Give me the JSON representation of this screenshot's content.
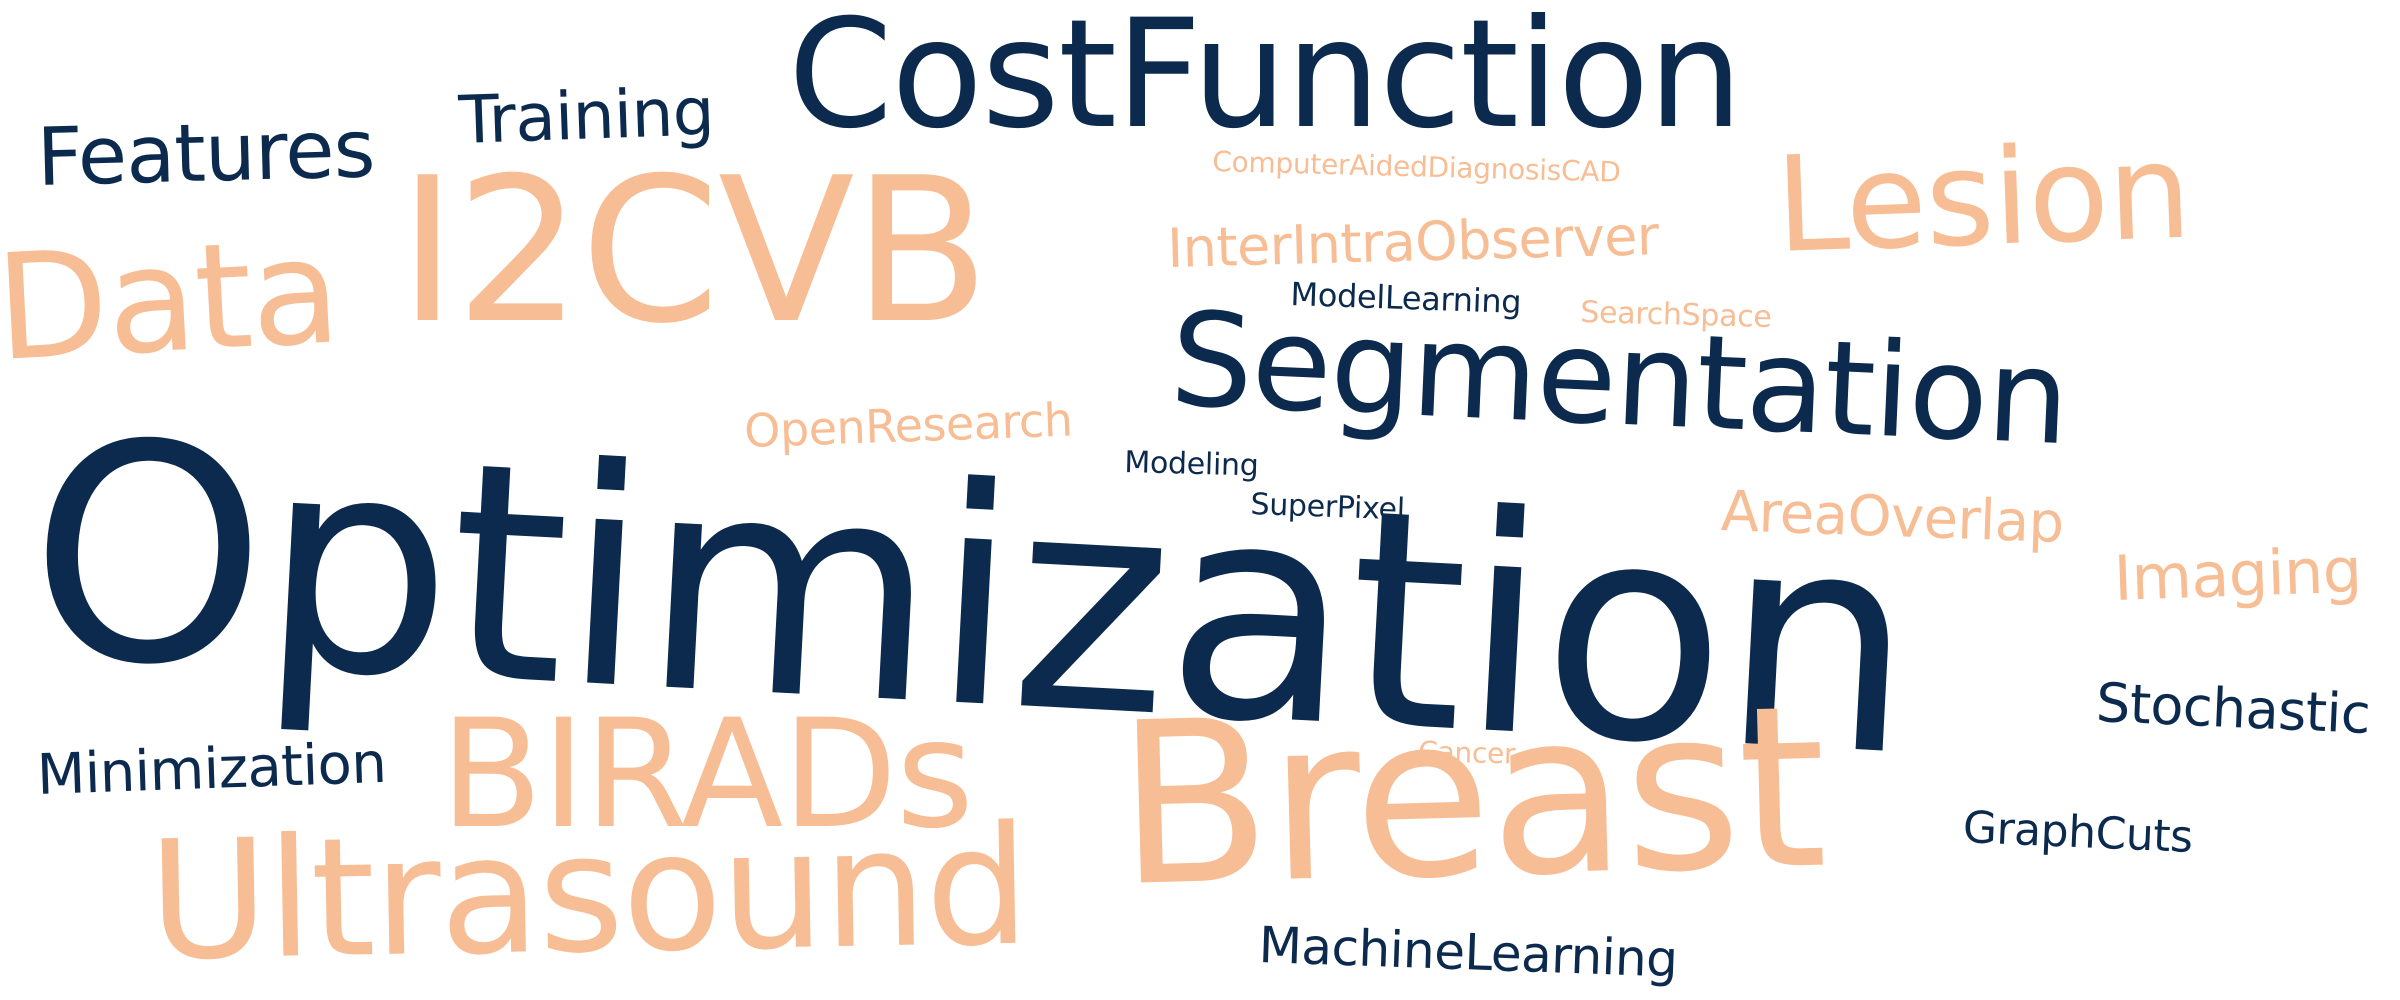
{
  "word_cloud": {
    "colors": {
      "dark": "#0c2a4d",
      "light": "#f7bd94",
      "background": "#ffffff"
    },
    "words": [
      {
        "id": "costfunction",
        "text": "CostFunction",
        "color": "dark"
      },
      {
        "id": "training",
        "text": "Training",
        "color": "dark"
      },
      {
        "id": "features",
        "text": "Features",
        "color": "dark"
      },
      {
        "id": "cad",
        "text": "ComputerAidedDiagnosisCAD",
        "color": "light"
      },
      {
        "id": "lesion",
        "text": "Lesion",
        "color": "light"
      },
      {
        "id": "i2cvb",
        "text": "I2CVB",
        "color": "light"
      },
      {
        "id": "data",
        "text": "Data",
        "color": "light"
      },
      {
        "id": "interintra",
        "text": "InterIntraObserver",
        "color": "light"
      },
      {
        "id": "modellearning",
        "text": "ModelLearning",
        "color": "dark"
      },
      {
        "id": "searchspace",
        "text": "SearchSpace",
        "color": "light"
      },
      {
        "id": "segmentation",
        "text": "Segmentation",
        "color": "dark"
      },
      {
        "id": "openresearch",
        "text": "OpenResearch",
        "color": "light"
      },
      {
        "id": "modeling",
        "text": "Modeling",
        "color": "dark"
      },
      {
        "id": "superpixel",
        "text": "SuperPixel",
        "color": "dark"
      },
      {
        "id": "optimization",
        "text": "Optimization",
        "color": "dark"
      },
      {
        "id": "areaoverlap",
        "text": "AreaOverlap",
        "color": "light"
      },
      {
        "id": "imaging",
        "text": "Imaging",
        "color": "light"
      },
      {
        "id": "stochastic",
        "text": "Stochastic",
        "color": "dark"
      },
      {
        "id": "cancer",
        "text": "Cancer",
        "color": "light"
      },
      {
        "id": "minimization",
        "text": "Minimization",
        "color": "dark"
      },
      {
        "id": "birads",
        "text": "BIRADs",
        "color": "light"
      },
      {
        "id": "breast",
        "text": "Breast",
        "color": "light"
      },
      {
        "id": "graphcuts",
        "text": "GraphCuts",
        "color": "dark"
      },
      {
        "id": "ultrasound",
        "text": "Ultrasound",
        "color": "light"
      },
      {
        "id": "machinelearning",
        "text": "MachineLearning",
        "color": "dark"
      }
    ]
  }
}
